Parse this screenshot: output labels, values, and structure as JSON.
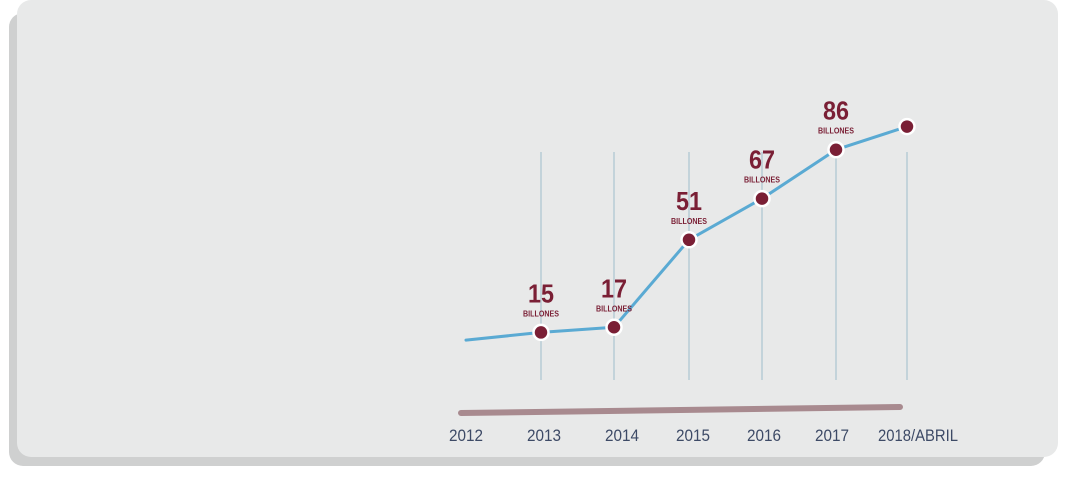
{
  "chart_data": {
    "type": "line",
    "categories": [
      "2012",
      "2013",
      "2014",
      "2015",
      "2016",
      "2017",
      "2018/ABRIL"
    ],
    "values": [
      12,
      15,
      17,
      51,
      67,
      86,
      95
    ],
    "data_labels": [
      {
        "index": 1,
        "value": "15",
        "unit": "BILLONES"
      },
      {
        "index": 2,
        "value": "17",
        "unit": "BILLONES"
      },
      {
        "index": 3,
        "value": "51",
        "unit": "BILLONES"
      },
      {
        "index": 4,
        "value": "67",
        "unit": "BILLONES"
      },
      {
        "index": 5,
        "value": "86",
        "unit": "BILLONES"
      }
    ],
    "marker_indices": [
      1,
      2,
      3,
      4,
      5,
      6
    ],
    "ylim": [
      0,
      110
    ],
    "grid": "vertical",
    "title": "",
    "xlabel": "",
    "ylabel": "",
    "colors": {
      "line": "#5aaad3",
      "marker": "#7a1f35",
      "label": "#7a1f35",
      "axis_bar": "#a88a8f",
      "gridline": "#c3d3da",
      "tick_text": "#3d4a66"
    }
  }
}
